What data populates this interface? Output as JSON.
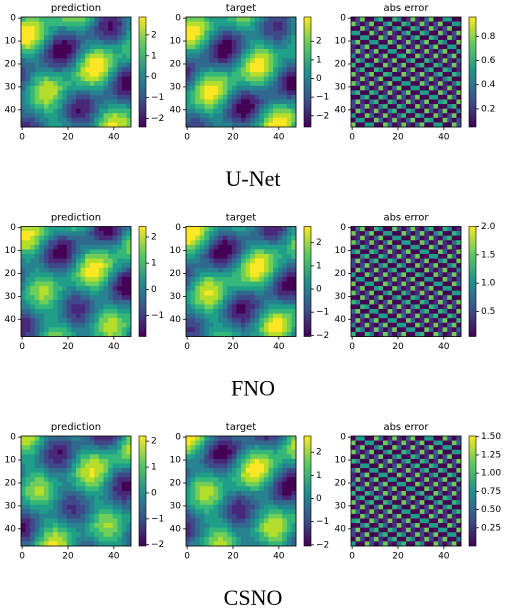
{
  "xticks": [
    0,
    20,
    40
  ],
  "yticks": [
    0,
    10,
    20,
    30,
    40
  ],
  "extent": [
    -0.5,
    47.5
  ],
  "rows": [
    {
      "label": "U-Net",
      "panels": [
        {
          "title": "prediction",
          "clim": [
            -2.4,
            2.85
          ],
          "cticks": [
            {
              "value": -2,
              "label": "−2"
            },
            {
              "value": -1,
              "label": "−1"
            },
            0,
            1,
            2
          ]
        },
        {
          "title": "target",
          "clim": [
            -2.6,
            3.3
          ],
          "cticks": [
            {
              "value": -2,
              "label": "−2"
            },
            {
              "value": -1,
              "label": "−1"
            },
            0,
            1,
            2
          ]
        },
        {
          "title": "abs error",
          "clim": [
            0.05,
            0.96
          ],
          "cticks": [
            0.2,
            0.4,
            0.6,
            0.8
          ]
        }
      ]
    },
    {
      "label": "FNO",
      "panels": [
        {
          "title": "prediction",
          "clim": [
            -1.8,
            2.4
          ],
          "cticks": [
            {
              "value": -1,
              "label": "−1"
            },
            0,
            1,
            2
          ]
        },
        {
          "title": "target",
          "clim": [
            -2.05,
            2.7
          ],
          "cticks": [
            {
              "value": -2,
              "label": "−2"
            },
            {
              "value": -1,
              "label": "−1"
            },
            0,
            1,
            2
          ]
        },
        {
          "title": "abs error",
          "clim": [
            0.06,
            2.0
          ],
          "cticks": [
            0.5,
            {
              "value": 1,
              "label": "1.0"
            },
            1.5,
            {
              "value": 2,
              "label": "2.0"
            }
          ]
        }
      ]
    },
    {
      "label": "CSNO",
      "panels": [
        {
          "title": "prediction",
          "clim": [
            -2.05,
            2.2
          ],
          "cticks": [
            {
              "value": -2,
              "label": "−2"
            },
            {
              "value": -1,
              "label": "−1"
            },
            0,
            1,
            2
          ]
        },
        {
          "title": "target",
          "clim": [
            -2.05,
            2.7
          ],
          "cticks": [
            {
              "value": -2,
              "label": "−2"
            },
            {
              "value": -1,
              "label": "−1"
            },
            0,
            1,
            2
          ]
        },
        {
          "title": "abs error",
          "clim": [
            0.0,
            1.51
          ],
          "cticks": [
            0.25,
            {
              "value": 0.5,
              "label": "0.50"
            },
            0.75,
            {
              "value": 1,
              "label": "1.00"
            },
            1.25,
            {
              "value": 1.5,
              "label": "1.50"
            }
          ]
        }
      ]
    }
  ]
}
